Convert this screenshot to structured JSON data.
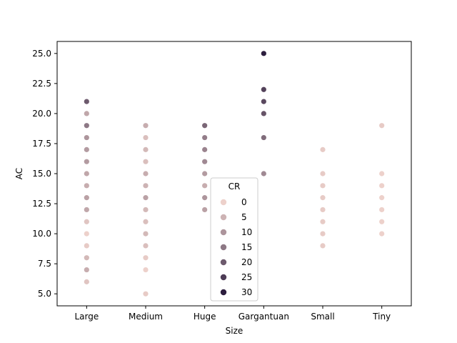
{
  "chart_data": {
    "type": "scatter",
    "title": "",
    "xlabel": "Size",
    "ylabel": "AC",
    "categories": [
      "Large",
      "Medium",
      "Huge",
      "Gargantuan",
      "Small",
      "Tiny"
    ],
    "ylim": [
      4.0,
      26.0
    ],
    "yticks": [
      "5.0",
      "7.5",
      "10.0",
      "12.5",
      "15.0",
      "17.5",
      "20.0",
      "22.5",
      "25.0"
    ],
    "grid": false,
    "hue": {
      "title": "CR",
      "range": [
        0,
        30
      ],
      "legend_levels": [
        "0",
        "5",
        "10",
        "15",
        "20",
        "25",
        "30"
      ],
      "color_low": "#edd1cb",
      "color_high": "#2d1e3e"
    },
    "legend_placement": "lower center",
    "points": [
      {
        "size": "Large",
        "ac": 6,
        "cr": 2
      },
      {
        "size": "Large",
        "ac": 7,
        "cr": 6
      },
      {
        "size": "Large",
        "ac": 8,
        "cr": 4
      },
      {
        "size": "Large",
        "ac": 9,
        "cr": 1
      },
      {
        "size": "Large",
        "ac": 10,
        "cr": 0
      },
      {
        "size": "Large",
        "ac": 11,
        "cr": 2
      },
      {
        "size": "Large",
        "ac": 12,
        "cr": 7
      },
      {
        "size": "Large",
        "ac": 13,
        "cr": 8
      },
      {
        "size": "Large",
        "ac": 14,
        "cr": 6
      },
      {
        "size": "Large",
        "ac": 15,
        "cr": 7
      },
      {
        "size": "Large",
        "ac": 16,
        "cr": 9
      },
      {
        "size": "Large",
        "ac": 17,
        "cr": 9
      },
      {
        "size": "Large",
        "ac": 18,
        "cr": 10
      },
      {
        "size": "Large",
        "ac": 19,
        "cr": 15
      },
      {
        "size": "Large",
        "ac": 20,
        "cr": 7
      },
      {
        "size": "Large",
        "ac": 21,
        "cr": 20
      },
      {
        "size": "Medium",
        "ac": 5,
        "cr": 1
      },
      {
        "size": "Medium",
        "ac": 7,
        "cr": 0
      },
      {
        "size": "Medium",
        "ac": 8,
        "cr": 1
      },
      {
        "size": "Medium",
        "ac": 9,
        "cr": 3
      },
      {
        "size": "Medium",
        "ac": 10,
        "cr": 4
      },
      {
        "size": "Medium",
        "ac": 11,
        "cr": 3
      },
      {
        "size": "Medium",
        "ac": 12,
        "cr": 4
      },
      {
        "size": "Medium",
        "ac": 13,
        "cr": 8
      },
      {
        "size": "Medium",
        "ac": 14,
        "cr": 5
      },
      {
        "size": "Medium",
        "ac": 15,
        "cr": 6
      },
      {
        "size": "Medium",
        "ac": 16,
        "cr": 3
      },
      {
        "size": "Medium",
        "ac": 17,
        "cr": 4
      },
      {
        "size": "Medium",
        "ac": 18,
        "cr": 3
      },
      {
        "size": "Medium",
        "ac": 19,
        "cr": 6
      },
      {
        "size": "Huge",
        "ac": 12,
        "cr": 8
      },
      {
        "size": "Huge",
        "ac": 13,
        "cr": 10
      },
      {
        "size": "Huge",
        "ac": 14,
        "cr": 6
      },
      {
        "size": "Huge",
        "ac": 15,
        "cr": 9
      },
      {
        "size": "Huge",
        "ac": 16,
        "cr": 12
      },
      {
        "size": "Huge",
        "ac": 17,
        "cr": 13
      },
      {
        "size": "Huge",
        "ac": 18,
        "cr": 14
      },
      {
        "size": "Huge",
        "ac": 19,
        "cr": 18
      },
      {
        "size": "Gargantuan",
        "ac": 15,
        "cr": 12
      },
      {
        "size": "Gargantuan",
        "ac": 18,
        "cr": 17
      },
      {
        "size": "Gargantuan",
        "ac": 20,
        "cr": 21
      },
      {
        "size": "Gargantuan",
        "ac": 21,
        "cr": 23
      },
      {
        "size": "Gargantuan",
        "ac": 22,
        "cr": 24
      },
      {
        "size": "Gargantuan",
        "ac": 25,
        "cr": 30
      },
      {
        "size": "Small",
        "ac": 9,
        "cr": 1
      },
      {
        "size": "Small",
        "ac": 10,
        "cr": 1
      },
      {
        "size": "Small",
        "ac": 11,
        "cr": 1
      },
      {
        "size": "Small",
        "ac": 12,
        "cr": 1
      },
      {
        "size": "Small",
        "ac": 13,
        "cr": 1
      },
      {
        "size": "Small",
        "ac": 14,
        "cr": 1
      },
      {
        "size": "Small",
        "ac": 15,
        "cr": 1
      },
      {
        "size": "Small",
        "ac": 17,
        "cr": 1
      },
      {
        "size": "Tiny",
        "ac": 10,
        "cr": 0
      },
      {
        "size": "Tiny",
        "ac": 11,
        "cr": 0
      },
      {
        "size": "Tiny",
        "ac": 12,
        "cr": 0
      },
      {
        "size": "Tiny",
        "ac": 13,
        "cr": 0
      },
      {
        "size": "Tiny",
        "ac": 14,
        "cr": 0
      },
      {
        "size": "Tiny",
        "ac": 15,
        "cr": 0
      },
      {
        "size": "Tiny",
        "ac": 19,
        "cr": 1
      }
    ]
  }
}
